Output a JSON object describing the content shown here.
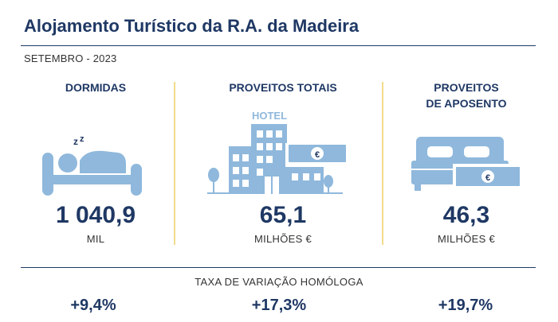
{
  "header": {
    "title": "Alojamento Turístico da R.A. da Madeira",
    "period": "SETEMBRO - 2023"
  },
  "indicators": [
    {
      "label": "DORMIDAS",
      "icon": "sleeping-person-icon",
      "value": "1 040,9",
      "unit": "MIL",
      "variation": "+9,4%"
    },
    {
      "label": "PROVEITOS TOTAIS",
      "icon": "hotel-icon",
      "icon_text": "HOTEL",
      "value": "65,1",
      "unit": "MILHÕES €",
      "variation": "+17,3%"
    },
    {
      "label_line1": "PROVEITOS",
      "label_line2": "DE APOSENTO",
      "icon": "bed-euro-icon",
      "value": "46,3",
      "unit": "MILHÕES €",
      "variation": "+19,7%"
    }
  ],
  "footer": {
    "variation_label": "TAXA DE VARIAÇÃO HOMÓLOGA"
  },
  "colors": {
    "navy": "#1f3864",
    "icon_blue": "#8fb8dc",
    "separator_yellow": "#f2dc8c"
  }
}
